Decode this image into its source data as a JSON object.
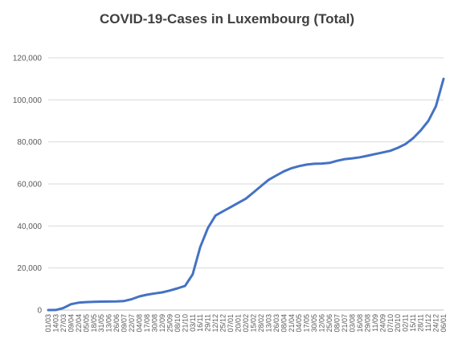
{
  "chart_data": {
    "type": "line",
    "title": "COVID-19-Cases in Luxembourg (Total)",
    "xlabel": "",
    "ylabel": "",
    "ylim": [
      0,
      120000
    ],
    "y_ticks": [
      "0",
      "20,000",
      "40,000",
      "60,000",
      "80,000",
      "100,000",
      "120,000"
    ],
    "grid": true,
    "legend": "none",
    "line_color": "#4472C4",
    "x_tick_labels": [
      "01/03",
      "14/03",
      "27/03",
      "09/04",
      "22/04",
      "05/05",
      "18/05",
      "31/05",
      "13/06",
      "26/06",
      "09/07",
      "22/07",
      "04/08",
      "17/08",
      "30/08",
      "12/09",
      "25/09",
      "08/10",
      "21/10",
      "03/11",
      "16/11",
      "29/11",
      "12/12",
      "25/12",
      "07/01",
      "20/01",
      "02/02",
      "15/02",
      "28/02",
      "13/03",
      "26/03",
      "08/04",
      "21/04",
      "04/05",
      "17/05",
      "30/05",
      "12/06",
      "25/06",
      "08/07",
      "21/07",
      "03/08",
      "16/08",
      "29/08",
      "11/09",
      "24/09",
      "07/10",
      "20/10",
      "02/11",
      "15/11",
      "28/11",
      "11/12",
      "24/12",
      "06/01"
    ],
    "series": [
      {
        "values": [
          0,
          50,
          1000,
          2800,
          3500,
          3800,
          3900,
          4000,
          4050,
          4100,
          4300,
          5200,
          6500,
          7300,
          7900,
          8400,
          9300,
          10300,
          11500,
          17000,
          30000,
          39000,
          45000,
          47000,
          49000,
          51000,
          53000,
          56000,
          59000,
          62000,
          64000,
          66000,
          67500,
          68500,
          69200,
          69600,
          69700,
          70000,
          71000,
          71800,
          72200,
          72700,
          73400,
          74200,
          75000,
          75800,
          77200,
          79000,
          81800,
          85500,
          90000,
          97000,
          110000
        ]
      }
    ]
  }
}
